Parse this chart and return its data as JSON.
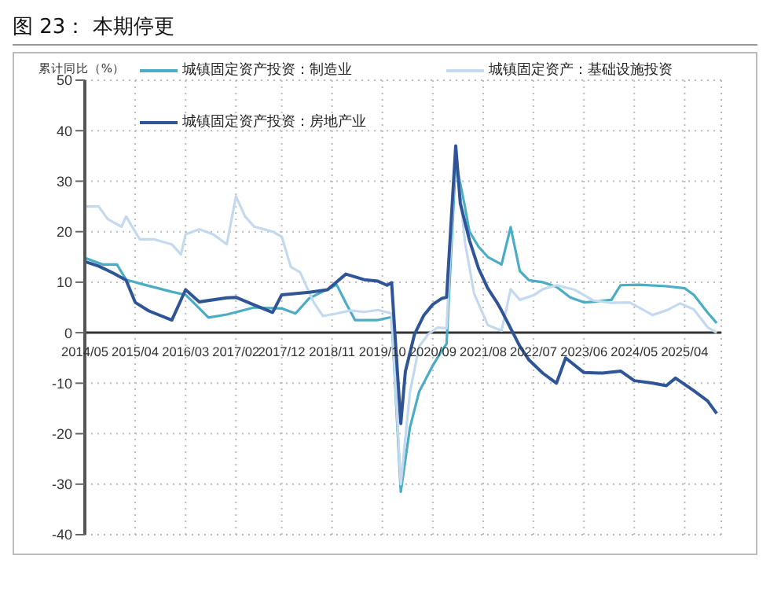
{
  "chart_data": {
    "type": "line",
    "title": "图 23： 本期停更",
    "ylabel": "累计同比（%）",
    "xlim": [
      "2014-05",
      "2025-12"
    ],
    "xticks": [
      {
        "value": "2014-05",
        "label": "2014/05"
      },
      {
        "value": "2015-04",
        "label": "2015/04"
      },
      {
        "value": "2016-03",
        "label": "2016/03"
      },
      {
        "value": "2017-02",
        "label": "2017/02"
      },
      {
        "value": "2017-12",
        "label": "2017/12"
      },
      {
        "value": "2018-11",
        "label": "2018/11"
      },
      {
        "value": "2019-10",
        "label": "2019/10"
      },
      {
        "value": "2020-09",
        "label": "2020/09"
      },
      {
        "value": "2021-08",
        "label": "2021/08"
      },
      {
        "value": "2022-07",
        "label": "2022/07"
      },
      {
        "value": "2023-06",
        "label": "2023/06"
      },
      {
        "value": "2024-05",
        "label": "2024/05"
      },
      {
        "value": "2025-04",
        "label": "2025/04"
      }
    ],
    "ylim": [
      -40,
      50
    ],
    "yticks": [
      -40,
      -30,
      -20,
      -10,
      0,
      10,
      20,
      30,
      40,
      50
    ],
    "grid": true,
    "legend": "top",
    "series": [
      {
        "name": "城镇固定资产投资：制造业",
        "color": "#4bacc6",
        "x": [
          "2014-05",
          "2014-09",
          "2014-12",
          "2015-02",
          "2015-06",
          "2015-12",
          "2016-03",
          "2016-08",
          "2016-12",
          "2017-06",
          "2017-12",
          "2018-03",
          "2018-06",
          "2018-12",
          "2019-02",
          "2019-04",
          "2019-09",
          "2019-12",
          "2020-02",
          "2020-04",
          "2020-06",
          "2020-09",
          "2020-11",
          "2020-12",
          "2021-02",
          "2021-04",
          "2021-05",
          "2021-07",
          "2021-09",
          "2021-11",
          "2021-12",
          "2022-02",
          "2022-04",
          "2022-06",
          "2022-09",
          "2022-12",
          "2023-03",
          "2023-06",
          "2023-09",
          "2023-12",
          "2024-02",
          "2024-06",
          "2024-12",
          "2025-04",
          "2025-06",
          "2025-09",
          "2025-11"
        ],
        "values": [
          14.8,
          13.5,
          13.5,
          10.5,
          9.5,
          8.1,
          7.5,
          3.0,
          3.6,
          5.0,
          4.8,
          3.8,
          6.8,
          9.5,
          5.9,
          2.5,
          2.5,
          3.1,
          -31.5,
          -18.8,
          -11.7,
          -6.5,
          -3.5,
          -2.2,
          34,
          25,
          20,
          17,
          15,
          14,
          13.5,
          20.9,
          12.2,
          10.4,
          10,
          9.1,
          7,
          6,
          6.2,
          6.5,
          9.4,
          9.5,
          9.2,
          8.8,
          7.5,
          4,
          1.9
        ]
      },
      {
        "name": "城镇固定资产：基础设施投资",
        "color": "#c5d9ee",
        "x": [
          "2014-05",
          "2014-08",
          "2014-10",
          "2015-01",
          "2015-02",
          "2015-05",
          "2015-08",
          "2015-12",
          "2016-02",
          "2016-03",
          "2016-06",
          "2016-09",
          "2016-12",
          "2017-02",
          "2017-04",
          "2017-06",
          "2017-10",
          "2017-12",
          "2018-02",
          "2018-04",
          "2018-07",
          "2018-09",
          "2018-12",
          "2019-03",
          "2019-06",
          "2019-09",
          "2019-12",
          "2020-02",
          "2020-04",
          "2020-06",
          "2020-08",
          "2020-10",
          "2020-12",
          "2021-02",
          "2021-04",
          "2021-06",
          "2021-09",
          "2021-12",
          "2022-02",
          "2022-04",
          "2022-07",
          "2022-09",
          "2022-12",
          "2023-04",
          "2023-08",
          "2023-12",
          "2024-04",
          "2024-09",
          "2024-12",
          "2025-03",
          "2025-06",
          "2025-09",
          "2025-11"
        ],
        "values": [
          25,
          25,
          22.5,
          21,
          23,
          18.5,
          18.5,
          17.5,
          15.5,
          19.5,
          20.5,
          19.5,
          17.5,
          27,
          23,
          21,
          20,
          19,
          13,
          12,
          6,
          3.3,
          3.8,
          4.4,
          4.1,
          4.5,
          3.8,
          -30,
          -11.8,
          -2.7,
          -0.3,
          1.0,
          0.9,
          36.6,
          18,
          7.8,
          1.5,
          0.4,
          8.6,
          6.5,
          7.4,
          8.6,
          9.4,
          8.5,
          6.4,
          5.9,
          6.0,
          3.5,
          4.4,
          5.8,
          4.6,
          1.1,
          0
        ]
      },
      {
        "name": "城镇固定资产投资：房地产业",
        "color": "#2f5597",
        "x": [
          "2014-05",
          "2014-08",
          "2014-11",
          "2015-02",
          "2015-04",
          "2015-07",
          "2015-12",
          "2016-03",
          "2016-06",
          "2016-12",
          "2017-02",
          "2017-06",
          "2017-10",
          "2017-12",
          "2018-06",
          "2018-10",
          "2019-02",
          "2019-06",
          "2019-09",
          "2019-11",
          "2019-12",
          "2020-02",
          "2020-03",
          "2020-05",
          "2020-07",
          "2020-09",
          "2020-11",
          "2020-12",
          "2021-02",
          "2021-03",
          "2021-05",
          "2021-07",
          "2021-09",
          "2021-11",
          "2021-12",
          "2022-04",
          "2022-06",
          "2022-09",
          "2022-12",
          "2023-02",
          "2023-06",
          "2023-10",
          "2024-02",
          "2024-05",
          "2024-09",
          "2024-12",
          "2025-02",
          "2025-06",
          "2025-09",
          "2025-11"
        ],
        "values": [
          14.1,
          13.2,
          11.9,
          10.4,
          6,
          4.3,
          2.5,
          8.5,
          6.1,
          6.9,
          7,
          5.5,
          4.0,
          7.5,
          8.0,
          8.5,
          11.6,
          10.5,
          10.2,
          9.4,
          9.9,
          -18,
          -7.7,
          -0.3,
          3.4,
          5.6,
          6.8,
          7.0,
          37,
          25.6,
          18.3,
          12.7,
          8.8,
          6.0,
          4.4,
          -2.7,
          -5.4,
          -8,
          -10,
          -5,
          -7.9,
          -8,
          -7.6,
          -9.5,
          -10,
          -10.5,
          -9,
          -11.5,
          -13.5,
          -16
        ]
      }
    ]
  }
}
